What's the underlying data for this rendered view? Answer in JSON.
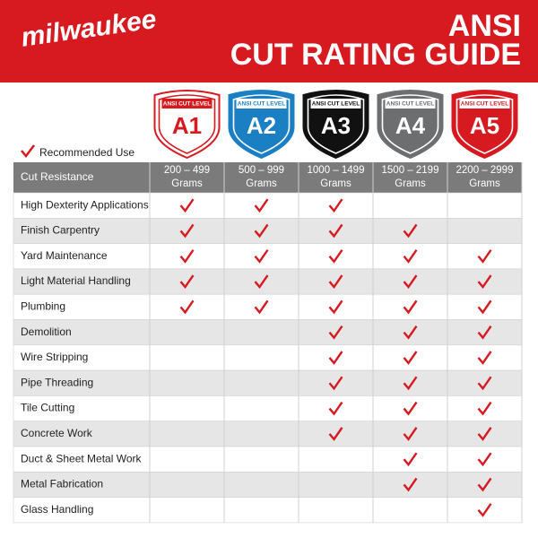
{
  "header": {
    "brand": "milwaukee",
    "title_line1": "ANSI",
    "title_line2": "CUT RATING GUIDE"
  },
  "levels": [
    {
      "caption": "ANSI CUT LEVEL",
      "name": "A1",
      "range": "200 – 499",
      "unit": "Grams",
      "color": "#ffffff",
      "ink": "#d71920"
    },
    {
      "caption": "ANSI CUT LEVEL",
      "name": "A2",
      "range": "500 – 999",
      "unit": "Grams",
      "color": "#1b7fc4",
      "ink": "#ffffff"
    },
    {
      "caption": "ANSI CUT LEVEL",
      "name": "A3",
      "range": "1000 – 1499",
      "unit": "Grams",
      "color": "#111111",
      "ink": "#ffffff"
    },
    {
      "caption": "ANSI CUT LEVEL",
      "name": "A4",
      "range": "1500 – 2199",
      "unit": "Grams",
      "color": "#6d6e70",
      "ink": "#ffffff"
    },
    {
      "caption": "ANSI CUT LEVEL",
      "name": "A5",
      "range": "2200 – 2999",
      "unit": "Grams",
      "color": "#d71920",
      "ink": "#ffffff"
    }
  ],
  "legend": "Recommended Use",
  "table": {
    "header": "Cut Resistance",
    "rows": [
      {
        "label": "High Dexterity Applications",
        "checks": [
          true,
          true,
          true,
          false,
          false
        ]
      },
      {
        "label": "Finish Carpentry",
        "checks": [
          true,
          true,
          true,
          true,
          false
        ]
      },
      {
        "label": "Yard Maintenance",
        "checks": [
          true,
          true,
          true,
          true,
          true
        ]
      },
      {
        "label": "Light Material Handling",
        "checks": [
          true,
          true,
          true,
          true,
          true
        ]
      },
      {
        "label": "Plumbing",
        "checks": [
          true,
          true,
          true,
          true,
          true
        ]
      },
      {
        "label": "Demolition",
        "checks": [
          false,
          false,
          true,
          true,
          true
        ]
      },
      {
        "label": "Wire Stripping",
        "checks": [
          false,
          false,
          true,
          true,
          true
        ]
      },
      {
        "label": "Pipe Threading",
        "checks": [
          false,
          false,
          true,
          true,
          true
        ]
      },
      {
        "label": "Tile Cutting",
        "checks": [
          false,
          false,
          true,
          true,
          true
        ]
      },
      {
        "label": "Concrete Work",
        "checks": [
          false,
          false,
          true,
          true,
          true
        ]
      },
      {
        "label": "Duct & Sheet Metal Work",
        "checks": [
          false,
          false,
          false,
          true,
          true
        ]
      },
      {
        "label": "Metal Fabrication",
        "checks": [
          false,
          false,
          false,
          true,
          true
        ]
      },
      {
        "label": "Glass Handling",
        "checks": [
          false,
          false,
          false,
          false,
          true
        ]
      }
    ]
  }
}
